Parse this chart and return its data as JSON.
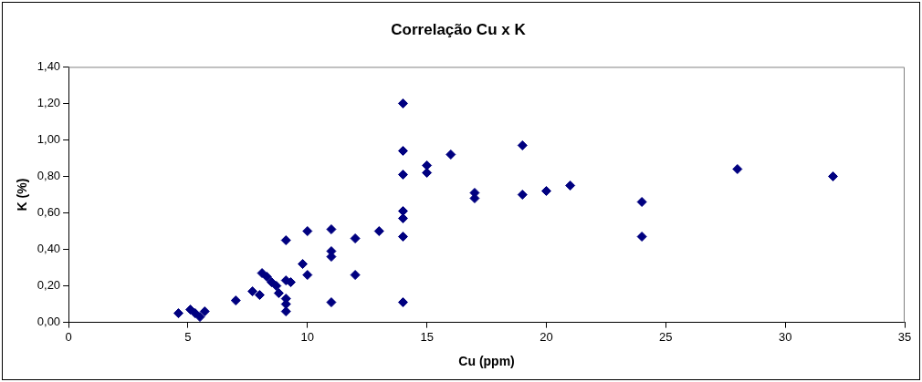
{
  "chart_data": {
    "type": "scatter",
    "title": "Correlação Cu x K",
    "xlabel": "Cu (ppm)",
    "ylabel": "K (%)",
    "xlim": [
      0,
      35
    ],
    "xticks": [
      0,
      5,
      10,
      15,
      20,
      25,
      30,
      35
    ],
    "ylim": [
      0,
      1.4
    ],
    "yticks": [
      {
        "value": 0,
        "label": "0,00"
      },
      {
        "value": 0.2,
        "label": "0,20"
      },
      {
        "value": 0.4,
        "label": "0,40"
      },
      {
        "value": 0.6,
        "label": "0,60"
      },
      {
        "value": 0.8,
        "label": "0,80"
      },
      {
        "value": 1.0,
        "label": "1,00"
      },
      {
        "value": 1.2,
        "label": "1,20"
      },
      {
        "value": 1.4,
        "label": "1,40"
      }
    ],
    "grid": false,
    "legend": false,
    "marker": "diamond",
    "series": [
      {
        "color": "#000080",
        "x": [
          4.6,
          5.1,
          5.3,
          5.5,
          5.7,
          7,
          7.7,
          8,
          8.1,
          8.3,
          8.5,
          8.7,
          8.8,
          9.1,
          9.1,
          9.1,
          9.1,
          9.1,
          9.3,
          9.8,
          10,
          10,
          11,
          11,
          11,
          11,
          12,
          12,
          13,
          14,
          14,
          14,
          14,
          14,
          14,
          14,
          15,
          15,
          16,
          17,
          17,
          19,
          19,
          20,
          21,
          24,
          24,
          28,
          32
        ],
        "values": [
          0.05,
          0.07,
          0.05,
          0.03,
          0.06,
          0.12,
          0.17,
          0.15,
          0.27,
          0.25,
          0.22,
          0.2,
          0.16,
          0.45,
          0.13,
          0.1,
          0.06,
          0.23,
          0.22,
          0.32,
          0.5,
          0.26,
          0.51,
          0.39,
          0.36,
          0.11,
          0.46,
          0.26,
          0.5,
          1.2,
          0.94,
          0.81,
          0.61,
          0.57,
          0.47,
          0.11,
          0.86,
          0.82,
          0.92,
          0.71,
          0.68,
          0.97,
          0.7,
          0.72,
          0.75,
          0.66,
          0.47,
          0.84,
          0.8
        ]
      }
    ]
  }
}
